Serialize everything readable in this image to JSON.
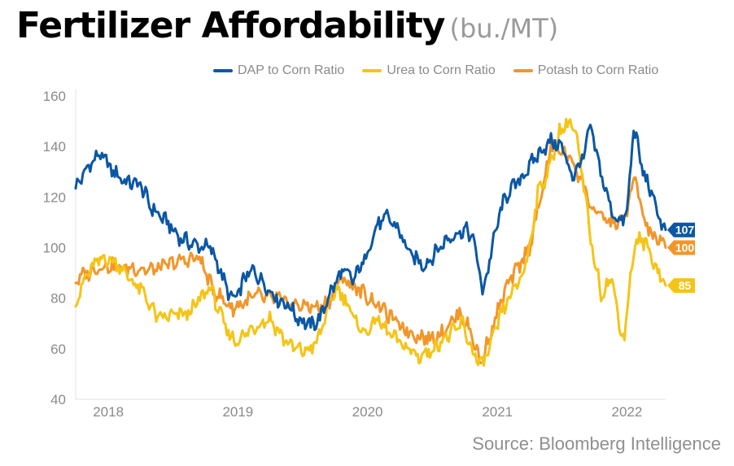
{
  "header": {
    "title": "Fertilizer Affordability",
    "unit": "(bu./MT)"
  },
  "source": "Source: Bloomberg Intelligence",
  "chart_data": {
    "type": "line",
    "title": "Fertilizer Affordability",
    "xlabel": "",
    "ylabel": "",
    "ylim": [
      40,
      160
    ],
    "yticks": [
      40,
      60,
      80,
      100,
      120,
      140,
      160
    ],
    "xlim": [
      "2017-10-01",
      "2022-04-20"
    ],
    "xticks": [
      {
        "label": "2018",
        "date": "2018-01-01"
      },
      {
        "label": "2019",
        "date": "2019-01-01"
      },
      {
        "label": "2020",
        "date": "2020-01-01"
      },
      {
        "label": "2021",
        "date": "2021-01-01"
      },
      {
        "label": "2022",
        "date": "2022-01-01"
      }
    ],
    "grid": false,
    "legend_position": "top",
    "series": [
      {
        "name": "DAP to Corn Ratio",
        "color": "#0b57a4",
        "end_label": "107",
        "points": [
          [
            "2017-10-01",
            124
          ],
          [
            "2017-11-15",
            134
          ],
          [
            "2017-12-10",
            137
          ],
          [
            "2018-01-15",
            130
          ],
          [
            "2018-02-20",
            126
          ],
          [
            "2018-04-01",
            125
          ],
          [
            "2018-05-01",
            116
          ],
          [
            "2018-06-15",
            110
          ],
          [
            "2018-07-20",
            104
          ],
          [
            "2018-09-01",
            101
          ],
          [
            "2018-10-15",
            100
          ],
          [
            "2018-11-10",
            92
          ],
          [
            "2018-12-01",
            83
          ],
          [
            "2018-12-25",
            79
          ],
          [
            "2019-01-20",
            88
          ],
          [
            "2019-02-15",
            91
          ],
          [
            "2019-03-15",
            86
          ],
          [
            "2019-04-20",
            80
          ],
          [
            "2019-05-25",
            77
          ],
          [
            "2019-06-20",
            72
          ],
          [
            "2019-07-25",
            69
          ],
          [
            "2019-08-20",
            72
          ],
          [
            "2019-09-20",
            83
          ],
          [
            "2019-10-25",
            91
          ],
          [
            "2019-11-20",
            87
          ],
          [
            "2019-12-20",
            94
          ],
          [
            "2020-01-25",
            108
          ],
          [
            "2020-02-25",
            112
          ],
          [
            "2020-03-25",
            108
          ],
          [
            "2020-05-01",
            97
          ],
          [
            "2020-06-10",
            93
          ],
          [
            "2020-07-10",
            98
          ],
          [
            "2020-08-10",
            103
          ],
          [
            "2020-09-10",
            106
          ],
          [
            "2020-10-10",
            107
          ],
          [
            "2020-11-01",
            100
          ],
          [
            "2020-11-20",
            82
          ],
          [
            "2020-12-10",
            95
          ],
          [
            "2021-01-10",
            115
          ],
          [
            "2021-02-01",
            122
          ],
          [
            "2021-03-01",
            126
          ],
          [
            "2021-04-01",
            132
          ],
          [
            "2021-05-01",
            138
          ],
          [
            "2021-06-01",
            142
          ],
          [
            "2021-07-01",
            140
          ],
          [
            "2021-08-01",
            128
          ],
          [
            "2021-09-01",
            136
          ],
          [
            "2021-09-20",
            148
          ],
          [
            "2021-10-15",
            132
          ],
          [
            "2021-11-15",
            116
          ],
          [
            "2021-12-10",
            110
          ],
          [
            "2022-01-01",
            113
          ],
          [
            "2022-01-20",
            148
          ],
          [
            "2022-02-15",
            130
          ],
          [
            "2022-03-15",
            120
          ],
          [
            "2022-04-01",
            112
          ],
          [
            "2022-04-20",
            107
          ]
        ]
      },
      {
        "name": "Urea to Corn Ratio",
        "color": "#f5c416",
        "end_label": "85",
        "points": [
          [
            "2017-10-01",
            78
          ],
          [
            "2017-10-25",
            87
          ],
          [
            "2017-11-20",
            93
          ],
          [
            "2017-12-20",
            96
          ],
          [
            "2018-01-25",
            94
          ],
          [
            "2018-03-01",
            88
          ],
          [
            "2018-04-10",
            82
          ],
          [
            "2018-05-20",
            72
          ],
          [
            "2018-07-01",
            73
          ],
          [
            "2018-08-15",
            74
          ],
          [
            "2018-09-20",
            80
          ],
          [
            "2018-10-15",
            85
          ],
          [
            "2018-11-10",
            74
          ],
          [
            "2018-12-05",
            66
          ],
          [
            "2018-12-25",
            63
          ],
          [
            "2019-01-25",
            66
          ],
          [
            "2019-03-01",
            70
          ],
          [
            "2019-04-01",
            72
          ],
          [
            "2019-05-10",
            64
          ],
          [
            "2019-06-10",
            60
          ],
          [
            "2019-07-10",
            59
          ],
          [
            "2019-08-10",
            62
          ],
          [
            "2019-09-10",
            75
          ],
          [
            "2019-10-05",
            84
          ],
          [
            "2019-10-30",
            80
          ],
          [
            "2019-11-30",
            70
          ],
          [
            "2019-12-30",
            66
          ],
          [
            "2020-01-25",
            72
          ],
          [
            "2020-02-25",
            67
          ],
          [
            "2020-03-25",
            63
          ],
          [
            "2020-04-25",
            60
          ],
          [
            "2020-05-25",
            57
          ],
          [
            "2020-06-25",
            59
          ],
          [
            "2020-07-25",
            63
          ],
          [
            "2020-08-25",
            66
          ],
          [
            "2020-09-25",
            70
          ],
          [
            "2020-10-20",
            60
          ],
          [
            "2020-11-15",
            53
          ],
          [
            "2020-12-10",
            60
          ],
          [
            "2021-01-10",
            73
          ],
          [
            "2021-02-10",
            82
          ],
          [
            "2021-03-10",
            88
          ],
          [
            "2021-04-01",
            100
          ],
          [
            "2021-04-25",
            122
          ],
          [
            "2021-05-25",
            130
          ],
          [
            "2021-06-25",
            146
          ],
          [
            "2021-07-25",
            150
          ],
          [
            "2021-08-10",
            145
          ],
          [
            "2021-09-05",
            120
          ],
          [
            "2021-09-25",
            100
          ],
          [
            "2021-10-20",
            82
          ],
          [
            "2021-11-20",
            88
          ],
          [
            "2021-12-10",
            70
          ],
          [
            "2021-12-25",
            64
          ],
          [
            "2022-01-15",
            95
          ],
          [
            "2022-02-05",
            104
          ],
          [
            "2022-03-01",
            100
          ],
          [
            "2022-03-25",
            92
          ],
          [
            "2022-04-20",
            85
          ]
        ]
      },
      {
        "name": "Potash to Corn Ratio",
        "color": "#f2962a",
        "end_label": "100",
        "points": [
          [
            "2017-10-01",
            87
          ],
          [
            "2017-11-15",
            91
          ],
          [
            "2017-12-20",
            93
          ],
          [
            "2018-02-01",
            92
          ],
          [
            "2018-03-15",
            92
          ],
          [
            "2018-05-01",
            91
          ],
          [
            "2018-06-15",
            93
          ],
          [
            "2018-08-01",
            95
          ],
          [
            "2018-09-15",
            96
          ],
          [
            "2018-10-20",
            84
          ],
          [
            "2018-11-15",
            80
          ],
          [
            "2018-12-15",
            76
          ],
          [
            "2019-01-15",
            78
          ],
          [
            "2019-02-20",
            81
          ],
          [
            "2019-03-20",
            80
          ],
          [
            "2019-04-20",
            80
          ],
          [
            "2019-05-20",
            78
          ],
          [
            "2019-06-20",
            77
          ],
          [
            "2019-07-20",
            77
          ],
          [
            "2019-08-20",
            76
          ],
          [
            "2019-09-20",
            80
          ],
          [
            "2019-10-20",
            88
          ],
          [
            "2019-11-20",
            85
          ],
          [
            "2019-12-20",
            82
          ],
          [
            "2020-01-25",
            78
          ],
          [
            "2020-02-25",
            74
          ],
          [
            "2020-03-25",
            70
          ],
          [
            "2020-04-25",
            67
          ],
          [
            "2020-05-25",
            65
          ],
          [
            "2020-06-25",
            64
          ],
          [
            "2020-07-25",
            66
          ],
          [
            "2020-08-25",
            71
          ],
          [
            "2020-09-20",
            74
          ],
          [
            "2020-10-20",
            66
          ],
          [
            "2020-11-15",
            54
          ],
          [
            "2020-12-10",
            65
          ],
          [
            "2021-01-10",
            78
          ],
          [
            "2021-02-01",
            86
          ],
          [
            "2021-03-01",
            92
          ],
          [
            "2021-04-01",
            100
          ],
          [
            "2021-05-01",
            118
          ],
          [
            "2021-06-01",
            140
          ],
          [
            "2021-07-01",
            138
          ],
          [
            "2021-08-01",
            134
          ],
          [
            "2021-09-01",
            125
          ],
          [
            "2021-09-25",
            115
          ],
          [
            "2021-10-20",
            112
          ],
          [
            "2021-11-20",
            110
          ],
          [
            "2021-12-20",
            110
          ],
          [
            "2022-01-10",
            120
          ],
          [
            "2022-01-25",
            128
          ],
          [
            "2022-02-15",
            112
          ],
          [
            "2022-03-15",
            104
          ],
          [
            "2022-04-01",
            103
          ],
          [
            "2022-04-20",
            100
          ]
        ]
      }
    ]
  }
}
